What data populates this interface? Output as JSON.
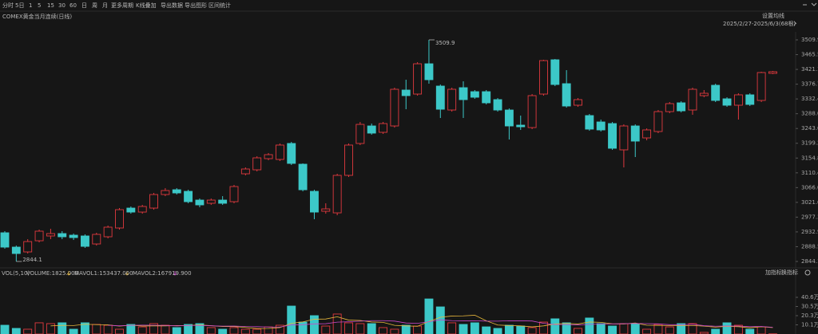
{
  "toolbar": {
    "items": [
      "分时",
      "5日",
      "1",
      "5",
      "15",
      "30",
      "60",
      "日",
      "周",
      "月",
      "更多周期",
      "K线叠加",
      "导出数据",
      "导出图形",
      "区间统计"
    ],
    "active_index": 7
  },
  "header": {
    "symbol": "COMEX黄金当月连续(日线)",
    "ma_setting": "设置均线",
    "range": "2025/2/27-2025/6/3(68根)"
  },
  "chart_data": [
    {
      "type": "candlestick",
      "up_color": "#e0393e",
      "down_color": "#3cc8c8",
      "open": [
        2930.3,
        2887.2,
        2872.8,
        2906.3,
        2920.7,
        2927.9,
        2923.1,
        2920.7,
        2896.7,
        2918.3,
        2944.7,
        3004.5,
        2992.5,
        3004.5,
        3045.2,
        3059.6,
        3054.8,
        3028.5,
        3018.9,
        3028.5,
        3023.7,
        3107.5,
        3119.5,
        3153.0,
        3150.6,
        3198.6,
        3136.3,
        3054.8,
        2994.9,
        2990.1,
        3102.8,
        3198.6,
        3251.2,
        3232.1,
        3251.2,
        3359.0,
        3347.0,
        3438.0,
        3371.0,
        3299.1,
        3366.2,
        3354.2,
        3354.2,
        3330.3,
        3299.1,
        3253.6,
        3246.4,
        3347.0,
        3450.0,
        3378.2,
        3313.5,
        3282.4,
        3263.2,
        3258.4,
        3179.4,
        3251.2,
        3215.3,
        3234.5,
        3294.3,
        3320.7,
        3299.1,
        3342.3,
        3373.4,
        3332.7,
        3313.5,
        3344.7,
        3327.9,
        3409.3
      ],
      "high": [
        2935.1,
        2891.9,
        2911.1,
        2939.9,
        2942.3,
        2935.1,
        2927.9,
        2925.5,
        2930.3,
        2951.9,
        3004.5,
        3009.3,
        3014.1,
        3050.0,
        3064.4,
        3064.4,
        3059.6,
        3033.3,
        3033.3,
        3040.4,
        3074.0,
        3126.7,
        3160.2,
        3169.8,
        3198.6,
        3203.3,
        3138.7,
        3059.6,
        3018.9,
        3107.5,
        3198.6,
        3263.2,
        3258.4,
        3263.2,
        3366.2,
        3390.2,
        3442.8,
        3509.9,
        3375.8,
        3366.2,
        3385.4,
        3359.0,
        3359.0,
        3335.1,
        3303.9,
        3282.4,
        3347.0,
        3450.0,
        3452.4,
        3418.9,
        3335.1,
        3287.2,
        3270.4,
        3263.2,
        3256.0,
        3256.0,
        3244.0,
        3299.1,
        3323.1,
        3325.5,
        3366.2,
        3359.0,
        3378.2,
        3337.5,
        3349.4,
        3349.4,
        3414.1,
        3416.5
      ],
      "low": [
        2882.4,
        2844.1,
        2868.0,
        2901.5,
        2911.1,
        2911.1,
        2908.7,
        2884.8,
        2891.9,
        2913.5,
        2939.9,
        2987.7,
        2987.7,
        2999.7,
        3040.4,
        3045.2,
        3018.9,
        3006.9,
        3014.1,
        3014.1,
        3018.9,
        3102.8,
        3114.7,
        3148.2,
        3145.8,
        3133.9,
        3054.8,
        2971.0,
        2987.7,
        2983.0,
        3098.0,
        3193.8,
        3224.9,
        3227.3,
        3246.4,
        3301.5,
        3342.3,
        3378.2,
        3275.2,
        3294.3,
        3275.2,
        3332.7,
        3315.9,
        3294.3,
        3210.5,
        3239.3,
        3241.7,
        3342.3,
        3371.0,
        3306.3,
        3308.7,
        3236.9,
        3234.5,
        3179.4,
        3126.7,
        3157.8,
        3208.1,
        3229.7,
        3289.6,
        3292.0,
        3284.8,
        3337.5,
        3323.1,
        3308.7,
        3270.4,
        3311.1,
        3323.1,
        3406.9
      ],
      "close": [
        2887.2,
        2868.0,
        2903.9,
        2935.1,
        2927.9,
        2918.3,
        2915.9,
        2889.5,
        2925.5,
        2947.1,
        2999.7,
        2992.5,
        3009.3,
        3045.2,
        3057.2,
        3050.0,
        3023.7,
        3014.1,
        3028.5,
        3018.9,
        3069.2,
        3121.9,
        3155.4,
        3165.0,
        3193.8,
        3138.7,
        3059.6,
        2992.5,
        3002.1,
        3102.8,
        3193.8,
        3256.0,
        3229.7,
        3258.4,
        3361.4,
        3342.3,
        3438.0,
        3390.2,
        3301.5,
        3361.4,
        3330.3,
        3337.5,
        3320.7,
        3299.1,
        3251.2,
        3248.8,
        3342.3,
        3447.6,
        3375.8,
        3311.1,
        3330.3,
        3241.7,
        3239.3,
        3184.2,
        3251.2,
        3205.7,
        3239.3,
        3294.3,
        3318.3,
        3296.7,
        3361.4,
        3349.4,
        3327.9,
        3313.5,
        3344.7,
        3315.9,
        3411.7,
        3414.1
      ],
      "ylim": [
        2844.1,
        3509.9
      ],
      "yticks": [
        2844.1,
        2888.5,
        2932.9,
        2977.3,
        3021.6,
        {
          "value": 3066.0,
          "label": "3066.0"
        },
        3110.4,
        3154.8,
        3199.2,
        3243.6,
        {
          "value": 3288.0,
          "label": "3288.0"
        },
        3332.4,
        3376.7,
        3421.1,
        3465.5,
        3509.9
      ]
    },
    {
      "type": "bar",
      "title": "VOL(5,10)",
      "current": "VOLUME:1825.000",
      "values": [
        9.7,
        6.2,
        5.3,
        12.4,
        11.5,
        12.4,
        5.3,
        12.4,
        10.6,
        9.7,
        5.3,
        10.6,
        7.9,
        11.5,
        9.7,
        7.1,
        10.6,
        11.5,
        7.1,
        5.3,
        7.1,
        5.3,
        5.3,
        7.9,
        9.7,
        30.9,
        13.2,
        20.3,
        8.8,
        22.1,
        12.4,
        11.5,
        11.5,
        7.1,
        5.3,
        9.7,
        8.8,
        38.8,
        30.0,
        12.4,
        10.6,
        12.4,
        7.9,
        6.2,
        9.7,
        8.8,
        7.1,
        13.2,
        16.8,
        12.4,
        6.2,
        17.7,
        11.5,
        8.8,
        11.5,
        11.5,
        5.3,
        10.6,
        7.9,
        11.5,
        11.5,
        1.8,
        5.3,
        12.4,
        9.7,
        5.3,
        7.9,
        0.2
      ],
      "series": [
        {
          "name": "MAVOL1:153437.000",
          "color": "#e8b83c",
          "values": [
            null,
            null,
            null,
            null,
            9.0,
            9.6,
            9.4,
            10.8,
            10.4,
            10.1,
            8.7,
            9.7,
            8.8,
            9.0,
            9.0,
            9.4,
            9.4,
            10.1,
            9.2,
            8.3,
            8.3,
            7.3,
            6.0,
            6.2,
            7.1,
            11.8,
            13.4,
            16.4,
            16.6,
            19.1,
            15.4,
            15.0,
            13.3,
            12.9,
            9.6,
            9.0,
            8.5,
            13.9,
            18.5,
            19.9,
            20.1,
            20.8,
            14.7,
            9.9,
            9.4,
            9.0,
            7.9,
            9.0,
            11.1,
            11.7,
            11.1,
            13.3,
            12.9,
            11.3,
            11.1,
            12.2,
            9.7,
            9.5,
            9.4,
            9.4,
            9.4,
            8.7,
            7.6,
            8.5,
            8.1,
            6.9,
            8.1,
            7.1
          ]
        },
        {
          "name": "MAVOL2:167919.900",
          "color": "#c848c8",
          "values": [
            null,
            null,
            null,
            null,
            null,
            null,
            null,
            null,
            null,
            9.6,
            9.1,
            9.6,
            9.8,
            9.7,
            9.5,
            9.0,
            9.5,
            9.5,
            9.1,
            8.7,
            8.8,
            8.3,
            8.1,
            7.7,
            7.7,
            10.1,
            10.3,
            11.2,
            11.4,
            13.1,
            13.6,
            14.2,
            14.8,
            14.8,
            14.3,
            12.2,
            11.8,
            13.6,
            15.7,
            14.8,
            14.6,
            14.7,
            14.3,
            14.2,
            14.7,
            14.6,
            14.4,
            11.8,
            10.5,
            10.5,
            10.1,
            10.6,
            11.0,
            11.2,
            11.4,
            11.7,
            11.5,
            11.2,
            10.3,
            10.3,
            10.8,
            9.2,
            8.6,
            8.9,
            8.8,
            8.1,
            8.4,
            7.4
          ]
        }
      ],
      "ylim": [
        0,
        40.6
      ],
      "yticks": [
        {
          "value": 40.6,
          "label": "40.6万"
        },
        {
          "value": 30.45,
          "label": "30.5万"
        },
        {
          "value": 20.3,
          "label": "20.3万"
        },
        {
          "value": 10.15,
          "label": "10.1万"
        }
      ],
      "buttons": [
        "加指标",
        "换指标"
      ]
    }
  ]
}
